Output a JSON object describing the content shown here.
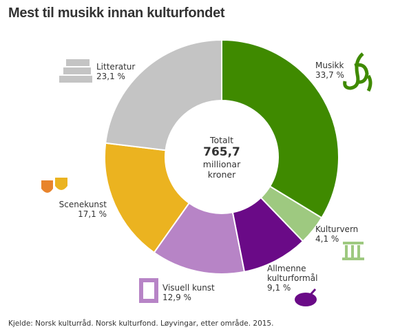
{
  "chart_data": {
    "type": "donut",
    "title": "Mest til musikk innan kulturfondet",
    "categories": [
      "Musikk",
      "Kulturvern",
      "Allmenne kulturformål",
      "Visuell kunst",
      "Scenekunst",
      "Litteratur"
    ],
    "values": [
      33.7,
      4.1,
      9.1,
      12.9,
      17.1,
      23.1
    ],
    "value_labels": [
      "33,7 %",
      "4,1 %",
      "9,1 %",
      "12,9 %",
      "17,1 %",
      "23,1 %"
    ],
    "colors": [
      "#3f8a00",
      "#9ec980",
      "#6a0a87",
      "#b784c6",
      "#ebb320",
      "#c4c4c4"
    ],
    "center_text": [
      "Totalt",
      "765,7",
      "millionar",
      "kroner"
    ],
    "source": "Kjelde: Norsk kulturråd. Norsk kulturfond. Løyvingar, etter område. 2015."
  }
}
